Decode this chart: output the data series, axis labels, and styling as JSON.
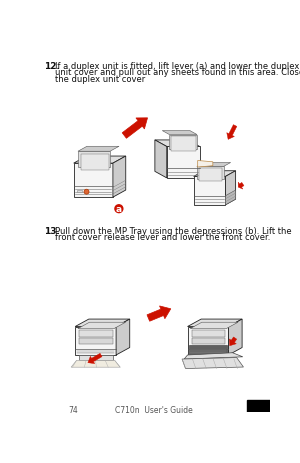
{
  "bg_color": "#ffffff",
  "text_color": "#111111",
  "step12_num": "12.",
  "step12_text_line1": "If a duplex unit is fitted, lift lever (a) and lower the duplex",
  "step12_text_line2": "unit cover and pull out any sheets found in this area. Close",
  "step12_text_line3": "the duplex unit cover",
  "step13_num": "13.",
  "step13_text_line1": "Pull down the MP Tray using the depressions (b). Lift the",
  "step13_text_line2": "front cover release lever and lower the front cover.",
  "footer_text": "74",
  "footer_text2": "C710n  User's Guide",
  "arrow_color": "#cc1100",
  "orange_color": "#dd6633",
  "label_bg": "#cc1100",
  "font_size_text": 6.0,
  "font_size_num": 6.5,
  "font_size_footer": 5.5,
  "printer_line_color": "#222222",
  "printer_face_light": "#f5f5f5",
  "printer_face_mid": "#e0e0e0",
  "printer_face_dark": "#cccccc",
  "printer_face_darker": "#b8b8b8"
}
